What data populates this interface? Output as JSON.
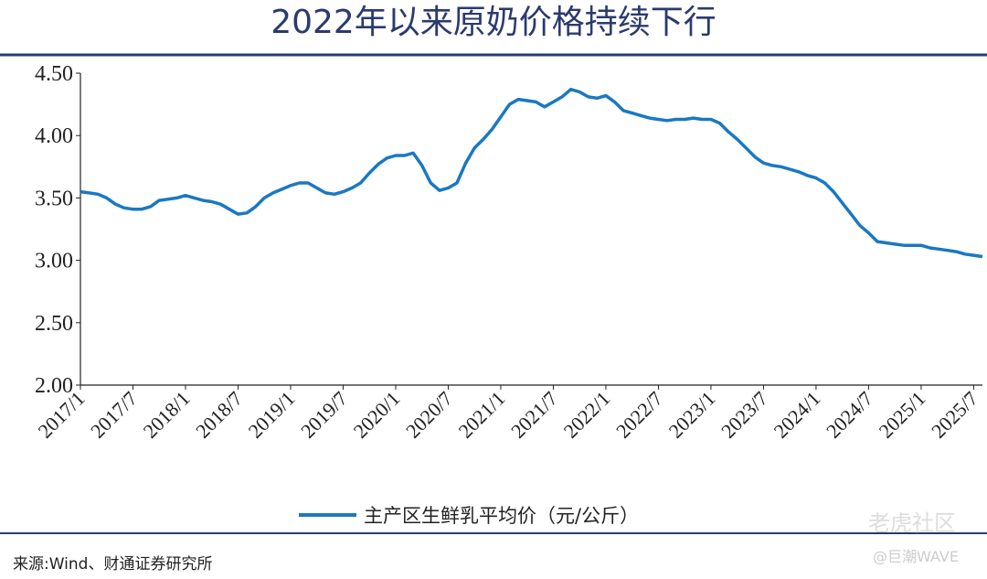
{
  "chart_data": {
    "type": "line",
    "title": "2022年以来原奶价格持续下行",
    "x": [
      "2017/1",
      "2017/2",
      "2017/3",
      "2017/4",
      "2017/5",
      "2017/6",
      "2017/7",
      "2017/8",
      "2017/9",
      "2017/10",
      "2017/11",
      "2017/12",
      "2018/1",
      "2018/2",
      "2018/3",
      "2018/4",
      "2018/5",
      "2018/6",
      "2018/7",
      "2018/8",
      "2018/9",
      "2018/10",
      "2018/11",
      "2018/12",
      "2019/1",
      "2019/2",
      "2019/3",
      "2019/4",
      "2019/5",
      "2019/6",
      "2019/7",
      "2019/8",
      "2019/9",
      "2019/10",
      "2019/11",
      "2019/12",
      "2020/1",
      "2020/2",
      "2020/3",
      "2020/4",
      "2020/5",
      "2020/6",
      "2020/7",
      "2020/8",
      "2020/9",
      "2020/10",
      "2020/11",
      "2020/12",
      "2021/1",
      "2021/2",
      "2021/3",
      "2021/4",
      "2021/5",
      "2021/6",
      "2021/7",
      "2021/8",
      "2021/9",
      "2021/10",
      "2021/11",
      "2021/12",
      "2022/1",
      "2022/2",
      "2022/3",
      "2022/4",
      "2022/5",
      "2022/6",
      "2022/7",
      "2022/8",
      "2022/9",
      "2022/10",
      "2022/11",
      "2022/12",
      "2023/1",
      "2023/2",
      "2023/3",
      "2023/4",
      "2023/5",
      "2023/6",
      "2023/7",
      "2023/8",
      "2023/9",
      "2023/10",
      "2023/11",
      "2023/12",
      "2024/1",
      "2024/2",
      "2024/3",
      "2024/4",
      "2024/5",
      "2024/6",
      "2024/7",
      "2024/8",
      "2024/9",
      "2024/10",
      "2024/11",
      "2024/12",
      "2025/1",
      "2025/2",
      "2025/3",
      "2025/4",
      "2025/5",
      "2025/6",
      "2025/7",
      "2025/8"
    ],
    "series": [
      {
        "name": "主产区生鲜乳平均价（元/公斤）",
        "color": "#1a78c2",
        "values": [
          3.55,
          3.54,
          3.53,
          3.5,
          3.45,
          3.42,
          3.41,
          3.41,
          3.43,
          3.48,
          3.49,
          3.5,
          3.52,
          3.5,
          3.48,
          3.47,
          3.45,
          3.41,
          3.37,
          3.38,
          3.43,
          3.5,
          3.54,
          3.57,
          3.6,
          3.62,
          3.62,
          3.58,
          3.54,
          3.53,
          3.55,
          3.58,
          3.62,
          3.7,
          3.77,
          3.82,
          3.84,
          3.84,
          3.86,
          3.76,
          3.62,
          3.56,
          3.58,
          3.62,
          3.78,
          3.9,
          3.97,
          4.05,
          4.15,
          4.25,
          4.29,
          4.28,
          4.27,
          4.23,
          4.27,
          4.31,
          4.37,
          4.35,
          4.31,
          4.3,
          4.32,
          4.27,
          4.2,
          4.18,
          4.16,
          4.14,
          4.13,
          4.12,
          4.13,
          4.13,
          4.14,
          4.13,
          4.13,
          4.1,
          4.03,
          3.97,
          3.9,
          3.83,
          3.78,
          3.76,
          3.75,
          3.73,
          3.71,
          3.68,
          3.66,
          3.62,
          3.55,
          3.46,
          3.37,
          3.28,
          3.22,
          3.15,
          3.14,
          3.13,
          3.12,
          3.12,
          3.12,
          3.1,
          3.09,
          3.08,
          3.07,
          3.05,
          3.04,
          3.03
        ]
      }
    ],
    "xticks": [
      "2017/1",
      "2017/7",
      "2018/1",
      "2018/7",
      "2019/1",
      "2019/7",
      "2020/1",
      "2020/7",
      "2021/1",
      "2021/7",
      "2022/1",
      "2022/7",
      "2023/1",
      "2023/7",
      "2024/1",
      "2024/7",
      "2025/1",
      "2025/7"
    ],
    "ylim": [
      2.0,
      4.5
    ],
    "yticks": [
      {
        "value": 2,
        "label": "2.00"
      },
      {
        "value": 2.5,
        "label": "2.50"
      },
      {
        "value": 3,
        "label": "3.00"
      },
      {
        "value": 3.5,
        "label": "3.50"
      },
      {
        "value": 4,
        "label": "4.00"
      },
      {
        "value": 4.5,
        "label": "4.50"
      }
    ],
    "legend": "bottom",
    "source": "来源:Wind、财通证券研究所",
    "watermarks": [
      "老虎社区",
      "@巨潮WAVE"
    ]
  }
}
